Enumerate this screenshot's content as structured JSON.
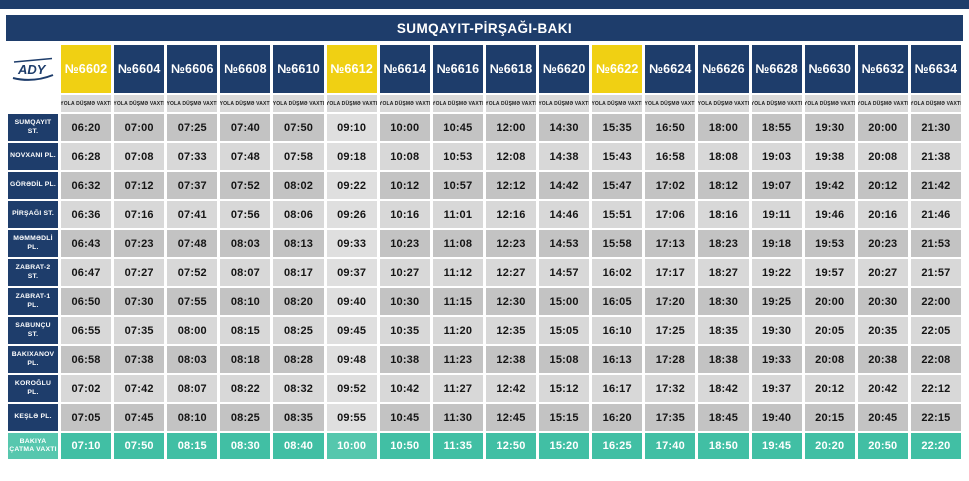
{
  "title": "SUMQAYIT-PİRŞAĞI-BAKI",
  "logo_text": "ADY",
  "subheader_label": "YOLA DÜŞMƏ VAXTI",
  "arrival_label": "BAKIYA ÇATMA VAXTI",
  "colors": {
    "navy": "#1e3d6b",
    "yellow": "#f0d013",
    "teal": "#41bfa4",
    "cell_dark": "#c3c3c3",
    "cell_light": "#d8d8d8"
  },
  "trains": [
    {
      "number": "№6602",
      "highlight": true
    },
    {
      "number": "№6604",
      "highlight": false
    },
    {
      "number": "№6606",
      "highlight": false
    },
    {
      "number": "№6608",
      "highlight": false
    },
    {
      "number": "№6610",
      "highlight": false
    },
    {
      "number": "№6612",
      "highlight": true
    },
    {
      "number": "№6614",
      "highlight": false
    },
    {
      "number": "№6616",
      "highlight": false
    },
    {
      "number": "№6618",
      "highlight": false
    },
    {
      "number": "№6620",
      "highlight": false
    },
    {
      "number": "№6622",
      "highlight": true
    },
    {
      "number": "№6624",
      "highlight": false
    },
    {
      "number": "№6626",
      "highlight": false
    },
    {
      "number": "№6628",
      "highlight": false
    },
    {
      "number": "№6630",
      "highlight": false
    },
    {
      "number": "№6632",
      "highlight": false
    },
    {
      "number": "№6634",
      "highlight": false
    }
  ],
  "stations": [
    {
      "name": "SUMQAYIT ST.",
      "times": [
        "06:20",
        "07:00",
        "07:25",
        "07:40",
        "07:50",
        "09:10",
        "10:00",
        "10:45",
        "12:00",
        "14:30",
        "15:35",
        "16:50",
        "18:00",
        "18:55",
        "19:30",
        "20:00",
        "21:30"
      ]
    },
    {
      "name": "NOVXANI PL.",
      "times": [
        "06:28",
        "07:08",
        "07:33",
        "07:48",
        "07:58",
        "09:18",
        "10:08",
        "10:53",
        "12:08",
        "14:38",
        "15:43",
        "16:58",
        "18:08",
        "19:03",
        "19:38",
        "20:08",
        "21:38"
      ]
    },
    {
      "name": "GÖRƏDİL PL.",
      "times": [
        "06:32",
        "07:12",
        "07:37",
        "07:52",
        "08:02",
        "09:22",
        "10:12",
        "10:57",
        "12:12",
        "14:42",
        "15:47",
        "17:02",
        "18:12",
        "19:07",
        "19:42",
        "20:12",
        "21:42"
      ]
    },
    {
      "name": "PİRŞAĞI ST.",
      "times": [
        "06:36",
        "07:16",
        "07:41",
        "07:56",
        "08:06",
        "09:26",
        "10:16",
        "11:01",
        "12:16",
        "14:46",
        "15:51",
        "17:06",
        "18:16",
        "19:11",
        "19:46",
        "20:16",
        "21:46"
      ]
    },
    {
      "name": "MƏMMƏDLİ PL.",
      "times": [
        "06:43",
        "07:23",
        "07:48",
        "08:03",
        "08:13",
        "09:33",
        "10:23",
        "11:08",
        "12:23",
        "14:53",
        "15:58",
        "17:13",
        "18:23",
        "19:18",
        "19:53",
        "20:23",
        "21:53"
      ]
    },
    {
      "name": "ZABRAT-2 ST.",
      "times": [
        "06:47",
        "07:27",
        "07:52",
        "08:07",
        "08:17",
        "09:37",
        "10:27",
        "11:12",
        "12:27",
        "14:57",
        "16:02",
        "17:17",
        "18:27",
        "19:22",
        "19:57",
        "20:27",
        "21:57"
      ]
    },
    {
      "name": "ZABRAT-1 PL.",
      "times": [
        "06:50",
        "07:30",
        "07:55",
        "08:10",
        "08:20",
        "09:40",
        "10:30",
        "11:15",
        "12:30",
        "15:00",
        "16:05",
        "17:20",
        "18:30",
        "19:25",
        "20:00",
        "20:30",
        "22:00"
      ]
    },
    {
      "name": "SABUNÇU ST.",
      "times": [
        "06:55",
        "07:35",
        "08:00",
        "08:15",
        "08:25",
        "09:45",
        "10:35",
        "11:20",
        "12:35",
        "15:05",
        "16:10",
        "17:25",
        "18:35",
        "19:30",
        "20:05",
        "20:35",
        "22:05"
      ]
    },
    {
      "name": "BAKIXANOV PL.",
      "times": [
        "06:58",
        "07:38",
        "08:03",
        "08:18",
        "08:28",
        "09:48",
        "10:38",
        "11:23",
        "12:38",
        "15:08",
        "16:13",
        "17:28",
        "18:38",
        "19:33",
        "20:08",
        "20:38",
        "22:08"
      ]
    },
    {
      "name": "KOROĞLU PL.",
      "times": [
        "07:02",
        "07:42",
        "08:07",
        "08:22",
        "08:32",
        "09:52",
        "10:42",
        "11:27",
        "12:42",
        "15:12",
        "16:17",
        "17:32",
        "18:42",
        "19:37",
        "20:12",
        "20:42",
        "22:12"
      ]
    },
    {
      "name": "KEŞLƏ PL.",
      "times": [
        "07:05",
        "07:45",
        "08:10",
        "08:25",
        "08:35",
        "09:55",
        "10:45",
        "11:30",
        "12:45",
        "15:15",
        "16:20",
        "17:35",
        "18:45",
        "19:40",
        "20:15",
        "20:45",
        "22:15"
      ]
    }
  ],
  "arrival_times": [
    "07:10",
    "07:50",
    "08:15",
    "08:30",
    "08:40",
    "10:00",
    "10:50",
    "11:35",
    "12:50",
    "15:20",
    "16:25",
    "17:40",
    "18:50",
    "19:45",
    "20:20",
    "20:50",
    "22:20"
  ]
}
